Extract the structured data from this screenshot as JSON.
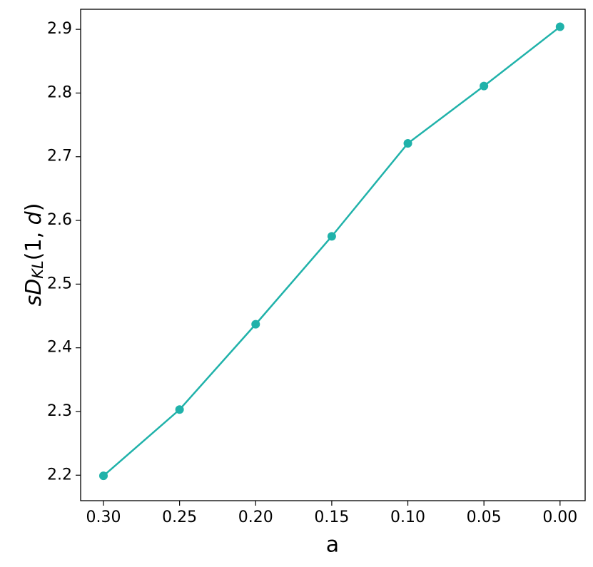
{
  "chart_data": {
    "type": "line",
    "xlabel": "a",
    "ylabel": [
      "sD",
      "KL",
      "(1, ",
      "d",
      ")"
    ],
    "x": [
      0.3,
      0.25,
      0.2,
      0.15,
      0.1,
      0.05,
      0.0
    ],
    "series": [
      {
        "color": "#20b2aa",
        "values": [
          2.199,
          2.303,
          2.437,
          2.575,
          2.721,
          2.811,
          2.904
        ]
      }
    ],
    "xlim": [
      0.315,
      -0.0165
    ],
    "ylim": [
      2.16,
      2.9315
    ],
    "xticks": [
      {
        "value": 0.3,
        "label": "0.30"
      },
      {
        "value": 0.25,
        "label": "0.25"
      },
      {
        "value": 0.2,
        "label": "0.20"
      },
      {
        "value": 0.15,
        "label": "0.15"
      },
      {
        "value": 0.1,
        "label": "0.10"
      },
      {
        "value": 0.05,
        "label": "0.05"
      },
      {
        "value": 0.0,
        "label": "0.00"
      }
    ],
    "yticks": [
      2.2,
      2.3,
      2.4,
      2.5,
      2.6,
      2.7,
      2.8,
      2.9
    ],
    "grid": false
  }
}
